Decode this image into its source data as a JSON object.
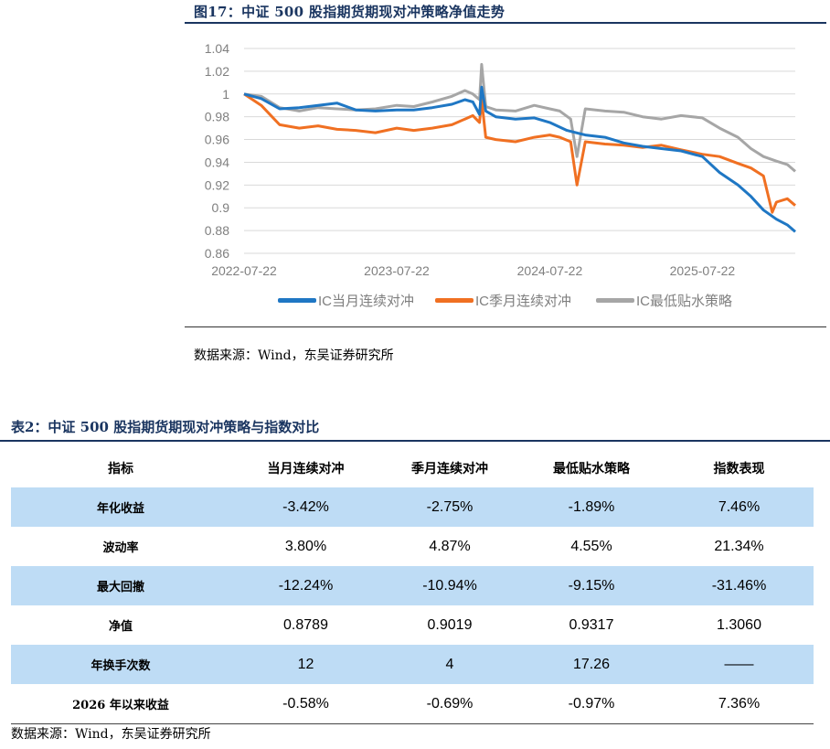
{
  "figure": {
    "title": "图17：中证 500 股指期货期现对冲策略净值走势",
    "source": "数据来源：Wind，东吴证券研究所"
  },
  "chart_data": {
    "type": "line",
    "title": "",
    "xlabel": "",
    "ylabel": "",
    "x_ticks": [
      "2022-07-22",
      "2023-07-22",
      "2024-07-22",
      "2025-07-22"
    ],
    "y_ticks": [
      "0.86",
      "0.88",
      "0.9",
      "0.92",
      "0.94",
      "0.96",
      "0.98",
      "1",
      "1.02",
      "1.04"
    ],
    "ylim": [
      0.86,
      1.04
    ],
    "xlim": [
      "2022-07-22",
      "2026-03-01"
    ],
    "grid": "horizontal",
    "legend_position": "bottom",
    "series": [
      {
        "name": "IC当月连续对冲",
        "color": "#1f77c4",
        "x": [
          "2022-07-22",
          "2022-09-01",
          "2022-10-15",
          "2022-12-01",
          "2023-01-15",
          "2023-03-01",
          "2023-04-15",
          "2023-06-01",
          "2023-07-22",
          "2023-09-01",
          "2023-10-15",
          "2023-12-01",
          "2024-01-01",
          "2024-01-20",
          "2024-02-05",
          "2024-02-10",
          "2024-02-20",
          "2024-03-15",
          "2024-05-01",
          "2024-06-15",
          "2024-07-22",
          "2024-09-01",
          "2024-10-15",
          "2024-12-01",
          "2025-01-15",
          "2025-03-01",
          "2025-04-15",
          "2025-06-01",
          "2025-07-22",
          "2025-09-01",
          "2025-10-15",
          "2025-11-15",
          "2025-12-15",
          "2026-01-15",
          "2026-02-10",
          "2026-03-01"
        ],
        "values": [
          1.0,
          0.996,
          0.987,
          0.988,
          0.99,
          0.992,
          0.986,
          0.985,
          0.986,
          0.986,
          0.988,
          0.991,
          0.995,
          0.993,
          0.982,
          1.006,
          0.985,
          0.98,
          0.978,
          0.979,
          0.975,
          0.968,
          0.964,
          0.962,
          0.957,
          0.954,
          0.952,
          0.95,
          0.945,
          0.931,
          0.92,
          0.91,
          0.898,
          0.89,
          0.885,
          0.879
        ]
      },
      {
        "name": "IC季月连续对冲",
        "color": "#f07022",
        "x": [
          "2022-07-22",
          "2022-09-01",
          "2022-10-15",
          "2022-12-01",
          "2023-01-15",
          "2023-03-01",
          "2023-04-15",
          "2023-06-01",
          "2023-07-22",
          "2023-09-01",
          "2023-10-15",
          "2023-12-01",
          "2024-01-01",
          "2024-01-20",
          "2024-02-05",
          "2024-02-10",
          "2024-02-20",
          "2024-03-15",
          "2024-05-01",
          "2024-06-15",
          "2024-07-22",
          "2024-08-15",
          "2024-09-10",
          "2024-09-25",
          "2024-10-15",
          "2024-12-01",
          "2025-01-15",
          "2025-03-01",
          "2025-04-15",
          "2025-06-01",
          "2025-07-22",
          "2025-09-01",
          "2025-10-15",
          "2025-11-15",
          "2025-12-15",
          "2026-01-05",
          "2026-01-15",
          "2026-02-10",
          "2026-03-01"
        ],
        "values": [
          1.0,
          0.99,
          0.973,
          0.97,
          0.972,
          0.969,
          0.968,
          0.966,
          0.97,
          0.968,
          0.97,
          0.973,
          0.978,
          0.981,
          0.975,
          0.995,
          0.962,
          0.96,
          0.958,
          0.962,
          0.964,
          0.962,
          0.958,
          0.92,
          0.958,
          0.956,
          0.955,
          0.953,
          0.955,
          0.951,
          0.947,
          0.945,
          0.939,
          0.935,
          0.928,
          0.896,
          0.905,
          0.908,
          0.902
        ]
      },
      {
        "name": "IC最低贴水策略",
        "color": "#a6a6a6",
        "x": [
          "2022-07-22",
          "2022-09-01",
          "2022-10-15",
          "2022-12-01",
          "2023-01-15",
          "2023-03-01",
          "2023-04-15",
          "2023-06-01",
          "2023-07-22",
          "2023-09-01",
          "2023-10-15",
          "2023-12-01",
          "2024-01-01",
          "2024-01-20",
          "2024-02-05",
          "2024-02-10",
          "2024-02-20",
          "2024-03-15",
          "2024-05-01",
          "2024-06-15",
          "2024-07-22",
          "2024-08-15",
          "2024-09-10",
          "2024-09-25",
          "2024-10-15",
          "2024-12-01",
          "2025-01-15",
          "2025-03-01",
          "2025-04-15",
          "2025-06-01",
          "2025-07-22",
          "2025-09-01",
          "2025-10-15",
          "2025-11-15",
          "2025-12-15",
          "2026-01-15",
          "2026-02-10",
          "2026-03-01"
        ],
        "values": [
          1.0,
          0.998,
          0.988,
          0.985,
          0.988,
          0.987,
          0.986,
          0.987,
          0.99,
          0.989,
          0.993,
          0.998,
          1.003,
          1.0,
          0.995,
          1.026,
          0.989,
          0.986,
          0.985,
          0.99,
          0.987,
          0.985,
          0.978,
          0.945,
          0.987,
          0.985,
          0.984,
          0.98,
          0.978,
          0.981,
          0.979,
          0.97,
          0.962,
          0.952,
          0.945,
          0.941,
          0.938,
          0.932
        ]
      }
    ]
  },
  "table": {
    "title": "表2：中证 500 股指期货期现对冲策略与指数对比",
    "headers": [
      "指标",
      "当月连续对冲",
      "季月连续对冲",
      "最低贴水策略",
      "指数表现"
    ],
    "rows": [
      {
        "label": "年化收益",
        "values": [
          "-3.42%",
          "-2.75%",
          "-1.89%",
          "7.46%"
        ]
      },
      {
        "label": "波动率",
        "values": [
          "3.80%",
          "4.87%",
          "4.55%",
          "21.34%"
        ]
      },
      {
        "label": "最大回撤",
        "values": [
          "-12.24%",
          "-10.94%",
          "-9.15%",
          "-31.46%"
        ]
      },
      {
        "label": "净值",
        "values": [
          "0.8789",
          "0.9019",
          "0.9317",
          "1.3060"
        ]
      },
      {
        "label": "年换手次数",
        "values": [
          "12",
          "4",
          "17.26",
          "——"
        ]
      },
      {
        "label": "2026 年以来收益",
        "values": [
          "-0.58%",
          "-0.69%",
          "-0.97%",
          "7.36%"
        ]
      }
    ],
    "source": "数据来源：Wind，东吴证券研究所",
    "shade_color": "#bedcf5"
  }
}
